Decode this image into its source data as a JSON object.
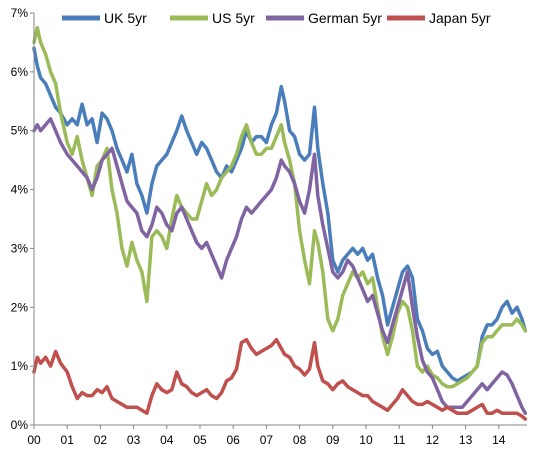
{
  "chart_data": {
    "type": "line",
    "title": "",
    "xlabel": "",
    "ylabel": "",
    "x_tick_labels": [
      "00",
      "01",
      "02",
      "03",
      "04",
      "05",
      "06",
      "07",
      "08",
      "09",
      "10",
      "11",
      "12",
      "13",
      "14"
    ],
    "y_tick_labels": [
      "0%",
      "1%",
      "2%",
      "3%",
      "4%",
      "5%",
      "6%",
      "7%"
    ],
    "xlim": [
      2000.0,
      2014.85
    ],
    "ylim": [
      0,
      7
    ],
    "grid": false,
    "legend_position": "top",
    "series": [
      {
        "name": "UK 5yr",
        "color": "#4a7ebb",
        "x": [
          2000.0,
          2000.1,
          2000.2,
          2000.35,
          2000.5,
          2000.65,
          2000.8,
          2001.0,
          2001.15,
          2001.3,
          2001.45,
          2001.6,
          2001.75,
          2001.9,
          2002.05,
          2002.2,
          2002.35,
          2002.5,
          2002.65,
          2002.8,
          2002.95,
          2003.1,
          2003.25,
          2003.4,
          2003.55,
          2003.7,
          2003.85,
          2004.0,
          2004.15,
          2004.3,
          2004.45,
          2004.6,
          2004.75,
          2004.9,
          2005.05,
          2005.2,
          2005.35,
          2005.5,
          2005.65,
          2005.8,
          2005.95,
          2006.1,
          2006.25,
          2006.4,
          2006.55,
          2006.7,
          2006.85,
          2007.0,
          2007.15,
          2007.3,
          2007.45,
          2007.55,
          2007.7,
          2007.85,
          2008.0,
          2008.15,
          2008.3,
          2008.45,
          2008.55,
          2008.7,
          2008.85,
          2009.0,
          2009.15,
          2009.3,
          2009.45,
          2009.6,
          2009.75,
          2009.9,
          2010.05,
          2010.2,
          2010.35,
          2010.5,
          2010.65,
          2010.8,
          2010.95,
          2011.1,
          2011.25,
          2011.4,
          2011.55,
          2011.7,
          2011.85,
          2012.0,
          2012.15,
          2012.3,
          2012.45,
          2012.6,
          2012.75,
          2012.9,
          2013.05,
          2013.2,
          2013.35,
          2013.5,
          2013.65,
          2013.8,
          2013.95,
          2014.1,
          2014.25,
          2014.4,
          2014.55,
          2014.7,
          2014.8
        ],
        "y": [
          6.4,
          6.1,
          5.9,
          5.8,
          5.6,
          5.4,
          5.3,
          5.1,
          5.2,
          5.1,
          5.45,
          5.1,
          5.2,
          4.8,
          5.3,
          5.2,
          5.0,
          4.7,
          4.5,
          4.3,
          4.6,
          4.1,
          3.9,
          3.6,
          4.1,
          4.4,
          4.5,
          4.6,
          4.8,
          5.0,
          5.25,
          5.0,
          4.8,
          4.6,
          4.8,
          4.7,
          4.5,
          4.3,
          4.2,
          4.4,
          4.3,
          4.5,
          4.7,
          5.0,
          4.8,
          4.9,
          4.9,
          4.8,
          5.1,
          5.3,
          5.75,
          5.5,
          5.0,
          4.9,
          4.6,
          4.5,
          4.6,
          5.4,
          4.7,
          4.1,
          3.6,
          2.8,
          2.6,
          2.8,
          2.9,
          3.0,
          2.9,
          3.0,
          2.8,
          2.9,
          2.5,
          2.2,
          1.7,
          2.0,
          2.3,
          2.6,
          2.7,
          2.5,
          1.8,
          1.6,
          1.3,
          1.2,
          1.25,
          1.0,
          0.9,
          0.8,
          0.75,
          0.8,
          0.85,
          0.9,
          1.0,
          1.5,
          1.7,
          1.7,
          1.8,
          2.0,
          2.1,
          1.9,
          2.0,
          1.8,
          1.6
        ]
      },
      {
        "name": "US 5yr",
        "color": "#9bbb59",
        "x": [
          2000.0,
          2000.1,
          2000.2,
          2000.35,
          2000.5,
          2000.65,
          2000.8,
          2001.0,
          2001.15,
          2001.3,
          2001.45,
          2001.6,
          2001.75,
          2001.9,
          2002.05,
          2002.2,
          2002.35,
          2002.5,
          2002.65,
          2002.8,
          2002.95,
          2003.1,
          2003.25,
          2003.4,
          2003.55,
          2003.7,
          2003.85,
          2004.0,
          2004.15,
          2004.3,
          2004.45,
          2004.6,
          2004.75,
          2004.9,
          2005.05,
          2005.2,
          2005.35,
          2005.5,
          2005.65,
          2005.8,
          2005.95,
          2006.1,
          2006.25,
          2006.4,
          2006.55,
          2006.7,
          2006.85,
          2007.0,
          2007.15,
          2007.3,
          2007.45,
          2007.55,
          2007.7,
          2007.85,
          2008.0,
          2008.15,
          2008.3,
          2008.45,
          2008.55,
          2008.7,
          2008.85,
          2009.0,
          2009.15,
          2009.3,
          2009.45,
          2009.6,
          2009.75,
          2009.9,
          2010.05,
          2010.2,
          2010.35,
          2010.5,
          2010.65,
          2010.8,
          2010.95,
          2011.1,
          2011.25,
          2011.4,
          2011.55,
          2011.7,
          2011.85,
          2012.0,
          2012.15,
          2012.3,
          2012.45,
          2012.6,
          2012.75,
          2012.9,
          2013.05,
          2013.2,
          2013.35,
          2013.5,
          2013.65,
          2013.8,
          2013.95,
          2014.1,
          2014.25,
          2014.4,
          2014.55,
          2014.7,
          2014.8
        ],
        "y": [
          6.5,
          6.75,
          6.5,
          6.3,
          6.0,
          5.8,
          5.3,
          4.8,
          4.6,
          4.9,
          4.5,
          4.2,
          3.9,
          4.4,
          4.5,
          4.7,
          4.0,
          3.6,
          3.0,
          2.7,
          3.1,
          2.8,
          2.6,
          2.1,
          3.2,
          3.3,
          3.2,
          3.0,
          3.5,
          3.9,
          3.7,
          3.6,
          3.5,
          3.5,
          3.8,
          4.1,
          3.9,
          4.0,
          4.2,
          4.3,
          4.4,
          4.6,
          4.9,
          5.1,
          4.8,
          4.6,
          4.6,
          4.7,
          4.7,
          4.9,
          5.1,
          4.8,
          4.5,
          4.1,
          3.3,
          2.8,
          2.4,
          3.3,
          3.1,
          2.6,
          1.8,
          1.6,
          1.8,
          2.2,
          2.4,
          2.6,
          2.5,
          2.6,
          2.4,
          2.5,
          2.0,
          1.5,
          1.2,
          1.5,
          1.9,
          2.1,
          2.0,
          1.6,
          1.0,
          0.9,
          1.0,
          0.85,
          0.8,
          0.7,
          0.65,
          0.65,
          0.7,
          0.75,
          0.8,
          0.9,
          1.0,
          1.4,
          1.5,
          1.5,
          1.6,
          1.7,
          1.7,
          1.7,
          1.8,
          1.7,
          1.6
        ]
      },
      {
        "name": "German 5yr",
        "color": "#8064a2",
        "x": [
          2000.0,
          2000.1,
          2000.2,
          2000.35,
          2000.5,
          2000.65,
          2000.8,
          2001.0,
          2001.15,
          2001.3,
          2001.45,
          2001.6,
          2001.75,
          2001.9,
          2002.05,
          2002.2,
          2002.35,
          2002.5,
          2002.65,
          2002.8,
          2002.95,
          2003.1,
          2003.25,
          2003.4,
          2003.55,
          2003.7,
          2003.85,
          2004.0,
          2004.15,
          2004.3,
          2004.45,
          2004.6,
          2004.75,
          2004.9,
          2005.05,
          2005.2,
          2005.35,
          2005.5,
          2005.65,
          2005.8,
          2005.95,
          2006.1,
          2006.25,
          2006.4,
          2006.55,
          2006.7,
          2006.85,
          2007.0,
          2007.15,
          2007.3,
          2007.45,
          2007.55,
          2007.7,
          2007.85,
          2008.0,
          2008.15,
          2008.3,
          2008.45,
          2008.55,
          2008.7,
          2008.85,
          2009.0,
          2009.15,
          2009.3,
          2009.45,
          2009.6,
          2009.75,
          2009.9,
          2010.05,
          2010.2,
          2010.35,
          2010.5,
          2010.65,
          2010.8,
          2010.95,
          2011.1,
          2011.25,
          2011.4,
          2011.55,
          2011.7,
          2011.85,
          2012.0,
          2012.15,
          2012.3,
          2012.45,
          2012.6,
          2012.75,
          2012.9,
          2013.05,
          2013.2,
          2013.35,
          2013.5,
          2013.65,
          2013.8,
          2013.95,
          2014.1,
          2014.25,
          2014.4,
          2014.55,
          2014.7,
          2014.8
        ],
        "y": [
          5.0,
          5.1,
          5.0,
          5.1,
          5.2,
          5.0,
          4.8,
          4.6,
          4.5,
          4.4,
          4.3,
          4.2,
          4.0,
          4.2,
          4.5,
          4.6,
          4.7,
          4.4,
          4.1,
          3.8,
          3.7,
          3.6,
          3.3,
          3.2,
          3.4,
          3.7,
          3.6,
          3.4,
          3.3,
          3.6,
          3.7,
          3.5,
          3.3,
          3.1,
          3.0,
          3.1,
          2.9,
          2.7,
          2.5,
          2.8,
          3.0,
          3.2,
          3.5,
          3.7,
          3.6,
          3.7,
          3.8,
          3.9,
          4.0,
          4.2,
          4.5,
          4.4,
          4.3,
          4.1,
          3.8,
          3.6,
          4.0,
          4.6,
          3.9,
          3.4,
          3.0,
          2.6,
          2.5,
          2.6,
          2.8,
          2.7,
          2.5,
          2.3,
          2.1,
          2.2,
          1.9,
          1.6,
          1.4,
          1.7,
          2.0,
          2.3,
          2.6,
          2.0,
          1.5,
          1.1,
          0.9,
          0.8,
          0.6,
          0.4,
          0.3,
          0.3,
          0.3,
          0.3,
          0.4,
          0.5,
          0.6,
          0.7,
          0.6,
          0.7,
          0.8,
          0.9,
          0.85,
          0.7,
          0.5,
          0.3,
          0.2
        ]
      },
      {
        "name": "Japan 5yr",
        "color": "#c0504d",
        "x": [
          2000.0,
          2000.1,
          2000.2,
          2000.35,
          2000.5,
          2000.65,
          2000.8,
          2001.0,
          2001.15,
          2001.3,
          2001.45,
          2001.6,
          2001.75,
          2001.9,
          2002.05,
          2002.2,
          2002.35,
          2002.5,
          2002.65,
          2002.8,
          2002.95,
          2003.1,
          2003.25,
          2003.4,
          2003.55,
          2003.7,
          2003.85,
          2004.0,
          2004.15,
          2004.3,
          2004.45,
          2004.6,
          2004.75,
          2004.9,
          2005.05,
          2005.2,
          2005.35,
          2005.5,
          2005.65,
          2005.8,
          2005.95,
          2006.1,
          2006.25,
          2006.4,
          2006.55,
          2006.7,
          2006.85,
          2007.0,
          2007.15,
          2007.3,
          2007.45,
          2007.55,
          2007.7,
          2007.85,
          2008.0,
          2008.15,
          2008.3,
          2008.45,
          2008.55,
          2008.7,
          2008.85,
          2009.0,
          2009.15,
          2009.3,
          2009.45,
          2009.6,
          2009.75,
          2009.9,
          2010.05,
          2010.2,
          2010.35,
          2010.5,
          2010.65,
          2010.8,
          2010.95,
          2011.1,
          2011.25,
          2011.4,
          2011.55,
          2011.7,
          2011.85,
          2012.0,
          2012.15,
          2012.3,
          2012.45,
          2012.6,
          2012.75,
          2012.9,
          2013.05,
          2013.2,
          2013.35,
          2013.5,
          2013.65,
          2013.8,
          2013.95,
          2014.1,
          2014.25,
          2014.4,
          2014.55,
          2014.7,
          2014.8
        ],
        "y": [
          0.9,
          1.15,
          1.05,
          1.15,
          1.0,
          1.25,
          1.05,
          0.9,
          0.65,
          0.45,
          0.55,
          0.5,
          0.5,
          0.6,
          0.55,
          0.65,
          0.45,
          0.4,
          0.35,
          0.3,
          0.3,
          0.3,
          0.25,
          0.2,
          0.5,
          0.7,
          0.6,
          0.55,
          0.6,
          0.9,
          0.7,
          0.65,
          0.55,
          0.5,
          0.55,
          0.6,
          0.5,
          0.45,
          0.55,
          0.75,
          0.8,
          0.95,
          1.4,
          1.45,
          1.3,
          1.2,
          1.25,
          1.3,
          1.35,
          1.45,
          1.3,
          1.2,
          1.15,
          1.0,
          0.95,
          0.85,
          0.95,
          1.4,
          1.0,
          0.75,
          0.7,
          0.6,
          0.7,
          0.75,
          0.65,
          0.6,
          0.55,
          0.5,
          0.5,
          0.4,
          0.35,
          0.3,
          0.25,
          0.35,
          0.45,
          0.6,
          0.5,
          0.4,
          0.35,
          0.35,
          0.4,
          0.35,
          0.3,
          0.25,
          0.3,
          0.25,
          0.2,
          0.2,
          0.2,
          0.25,
          0.3,
          0.35,
          0.2,
          0.2,
          0.25,
          0.2,
          0.2,
          0.2,
          0.2,
          0.15,
          0.1
        ]
      }
    ]
  }
}
